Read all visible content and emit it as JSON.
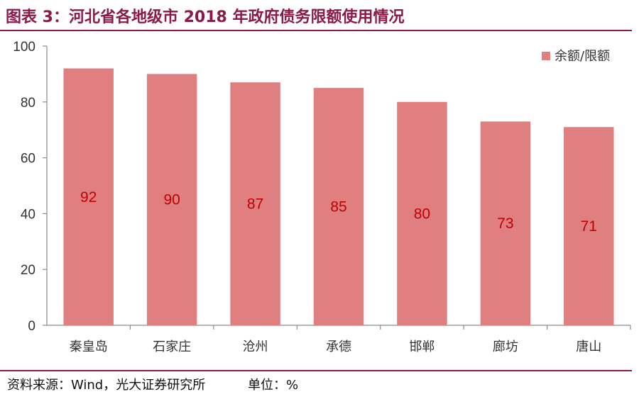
{
  "header": {
    "title": "图表 3：河北省各地级市 2018 年政府债务限额使用情况"
  },
  "footer": {
    "source": "资料来源：Wind，光大证券研究所",
    "unit": "单位：%"
  },
  "colors": {
    "bar": "#df7f80",
    "accent": "#8b1a4a",
    "label": "#c00000"
  },
  "chart_data": {
    "type": "bar",
    "categories": [
      "秦皇岛",
      "石家庄",
      "沧州",
      "承德",
      "邯郸",
      "廊坊",
      "唐山"
    ],
    "series": [
      {
        "name": "余额/限额",
        "values": [
          92,
          90,
          87,
          85,
          80,
          73,
          71
        ]
      }
    ],
    "data_labels": [
      "92",
      "90",
      "87",
      "85",
      "80",
      "73",
      "71"
    ],
    "ylim": [
      0,
      100
    ],
    "yticks": [
      0,
      20,
      40,
      60,
      80,
      100
    ],
    "legend_position": "top-right",
    "grid": false
  }
}
